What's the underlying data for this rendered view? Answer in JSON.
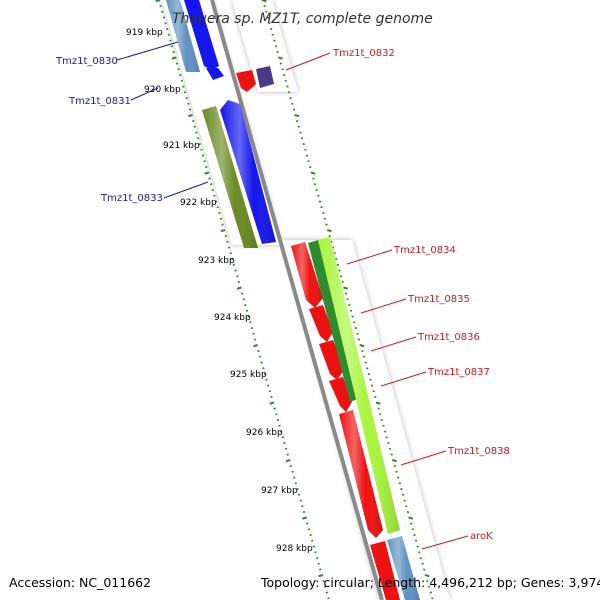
{
  "title": "Thauera sp. MZ1T, complete genome",
  "footer": {
    "accession": "Accession: NC_011662",
    "summary": "Topology: circular; Length: 4,496,212 bp; Genes: 3,974"
  },
  "colors": {
    "backbone": "#8a8a8a",
    "tick": "#2a8a22",
    "label_blue": "#1a1aa8",
    "label_red": "#cc1a1a",
    "gene_red": "#ee1111",
    "gene_blue": "#1515ee",
    "gene_steel": "#5f93c2",
    "gene_olive": "#6b8a23",
    "gene_green": "#2e8b2e",
    "gene_lime": "#a8f53c",
    "gene_purple": "#4a3a8a"
  },
  "scale_labels": [
    "919 kbp",
    "920 kbp",
    "921 kbp",
    "922 kbp",
    "923 kbp",
    "924 kbp",
    "925 kbp",
    "926 kbp",
    "927 kbp",
    "928 kbp"
  ],
  "genes": [
    {
      "label": "Tmz1t_0830",
      "side": "left",
      "strand": "forward",
      "color": "gene_blue"
    },
    {
      "label": "Tmz1t_0831",
      "side": "left",
      "strand": "forward",
      "color": "gene_blue"
    },
    {
      "label": "Tmz1t_0832",
      "side": "right",
      "strand": "reverse",
      "color": "gene_red"
    },
    {
      "label": "Tmz1t_0833",
      "side": "left",
      "strand": "forward",
      "color": "gene_blue"
    },
    {
      "label": "Tmz1t_0834",
      "side": "right",
      "strand": "reverse",
      "color": "gene_red"
    },
    {
      "label": "Tmz1t_0835",
      "side": "right",
      "strand": "reverse",
      "color": "gene_red"
    },
    {
      "label": "Tmz1t_0836",
      "side": "right",
      "strand": "reverse",
      "color": "gene_red"
    },
    {
      "label": "Tmz1t_0837",
      "side": "right",
      "strand": "reverse",
      "color": "gene_red"
    },
    {
      "label": "Tmz1t_0838",
      "side": "right",
      "strand": "reverse",
      "color": "gene_red"
    },
    {
      "label": "aroK",
      "side": "right",
      "strand": "reverse",
      "color": "gene_red"
    }
  ]
}
